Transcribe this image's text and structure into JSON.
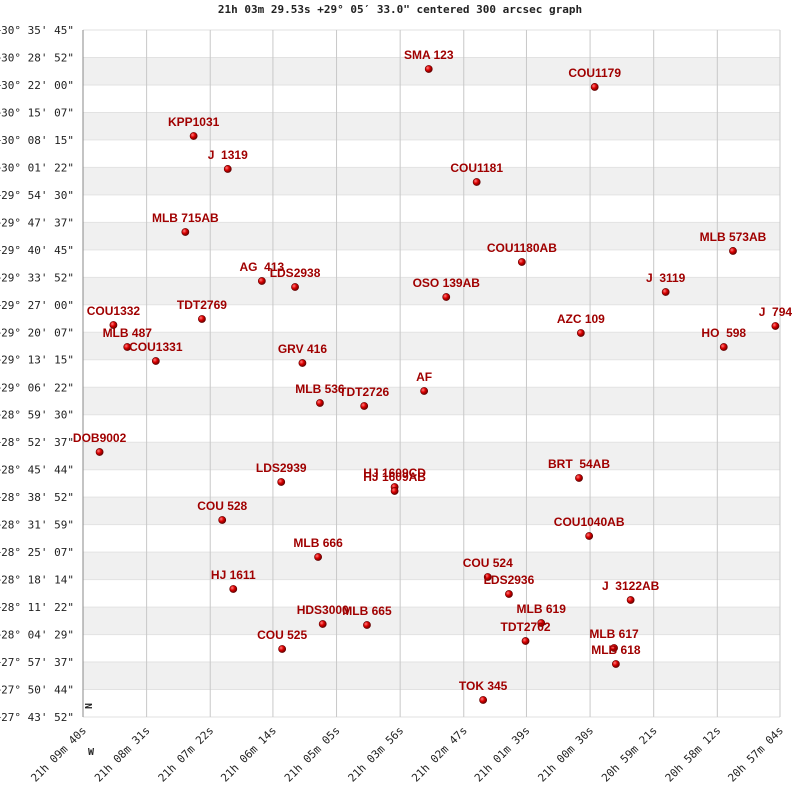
{
  "chart_data": {
    "type": "scatter",
    "title": "21h 03m 29.53s +29° 05′ 33.0\" centered 300 arcsec graph",
    "north_label": "N",
    "west_label": "W",
    "color": "#cc0000",
    "label_color": "#a00000",
    "grid": true,
    "xlim": [
      76180,
      75424
    ],
    "ylim": [
      99832,
      110145
    ],
    "xticks": [
      {
        "value": 76180,
        "label": "21h 09m 40s"
      },
      {
        "value": 76111,
        "label": "21h 08m 31s"
      },
      {
        "value": 76042,
        "label": "21h 07m 22s"
      },
      {
        "value": 75974,
        "label": "21h 06m 14s"
      },
      {
        "value": 75905,
        "label": "21h 05m 05s"
      },
      {
        "value": 75836,
        "label": "21h 03m 56s"
      },
      {
        "value": 75767,
        "label": "21h 02m 47s"
      },
      {
        "value": 75699,
        "label": "21h 01m 39s"
      },
      {
        "value": 75630,
        "label": "21h 00m 30s"
      },
      {
        "value": 75561,
        "label": "20h 59m 21s"
      },
      {
        "value": 75492,
        "label": "20h 58m 12s"
      },
      {
        "value": 75424,
        "label": "20h 57m 04s"
      }
    ],
    "yticks": [
      {
        "value": 110145,
        "label": "+30° 35' 45\""
      },
      {
        "value": 109732,
        "label": "+30° 28' 52\""
      },
      {
        "value": 109320,
        "label": "+30° 22' 00\""
      },
      {
        "value": 108907,
        "label": "+30° 15' 07\""
      },
      {
        "value": 108495,
        "label": "+30° 08' 15\""
      },
      {
        "value": 108082,
        "label": "+30° 01' 22\""
      },
      {
        "value": 107670,
        "label": "+29° 54' 30\""
      },
      {
        "value": 107257,
        "label": "+29° 47' 37\""
      },
      {
        "value": 106845,
        "label": "+29° 40' 45\""
      },
      {
        "value": 106432,
        "label": "+29° 33' 52\""
      },
      {
        "value": 106020,
        "label": "+29° 27' 00\""
      },
      {
        "value": 105607,
        "label": "+29° 20' 07\""
      },
      {
        "value": 105195,
        "label": "+29° 13' 15\""
      },
      {
        "value": 104782,
        "label": "+29° 06' 22\""
      },
      {
        "value": 104370,
        "label": "+28° 59' 30\""
      },
      {
        "value": 103957,
        "label": "+28° 52' 37\""
      },
      {
        "value": 103544,
        "label": "+28° 45' 44\""
      },
      {
        "value": 103132,
        "label": "+28° 38' 52\""
      },
      {
        "value": 102719,
        "label": "+28° 31' 59\""
      },
      {
        "value": 102307,
        "label": "+28° 25' 07\""
      },
      {
        "value": 101894,
        "label": "+28° 18' 14\""
      },
      {
        "value": 101482,
        "label": "+28° 11' 22\""
      },
      {
        "value": 101069,
        "label": "+28° 04' 29\""
      },
      {
        "value": 100657,
        "label": "+27° 57' 37\""
      },
      {
        "value": 100244,
        "label": "+27° 50' 44\""
      },
      {
        "value": 99832,
        "label": "+27° 43' 52\""
      }
    ],
    "labels": [
      "SMA 123",
      "COU1179",
      "KPP1031",
      "J  1319",
      "COU1181",
      "MLB 715AB",
      "MLB 573AB",
      "COU1180AB",
      "AG  413",
      "LDS2938",
      "J  3119",
      "OSO 139AB",
      "TDT2769",
      "COU1332",
      "J  794",
      "AZC 109",
      "MLB 487",
      "HO  598",
      "COU1331",
      "GRV 416",
      "AF",
      "MLB 536",
      "TDT2726",
      "DOB9002",
      "LDS2939",
      "BRT  54AB",
      "HJ 1609CD",
      "HJ 1609AB",
      "COU 528",
      "COU1040AB",
      "MLB 666",
      "COU 524",
      "LDS2936",
      "HJ 1611",
      "J  3122AB",
      "MLB 619",
      "HDS3000",
      "MLB 665",
      "TDT2702",
      "MLB 617",
      "COU 525",
      "MLB 618",
      "TOK 345"
    ],
    "x": [
      75805,
      75625,
      76060,
      76023,
      75753,
      76069,
      75475,
      75704,
      75986,
      75950,
      75548,
      75786,
      76051,
      76147,
      75429,
      75640,
      76132,
      75485,
      76101,
      75942,
      75810,
      75923,
      75875,
      76162,
      75965,
      75642,
      75842,
      75842,
      76029,
      75631,
      75925,
      75741,
      75718,
      76017,
      75586,
      75683,
      75920,
      75872,
      75700,
      75604,
      75964,
      75602,
      75746
    ],
    "y": [
      109560,
      109290,
      108554,
      108059,
      107863,
      107113,
      106828,
      106662,
      106377,
      106287,
      106212,
      106137,
      105807,
      105717,
      105702,
      105597,
      105386,
      105386,
      105176,
      105146,
      104726,
      104546,
      104501,
      103810,
      103360,
      103420,
      103285,
      103225,
      102789,
      102549,
      102234,
      101934,
      101678,
      101754,
      101588,
      101243,
      101228,
      101213,
      100973,
      100868,
      100853,
      100628,
      100087
    ]
  }
}
